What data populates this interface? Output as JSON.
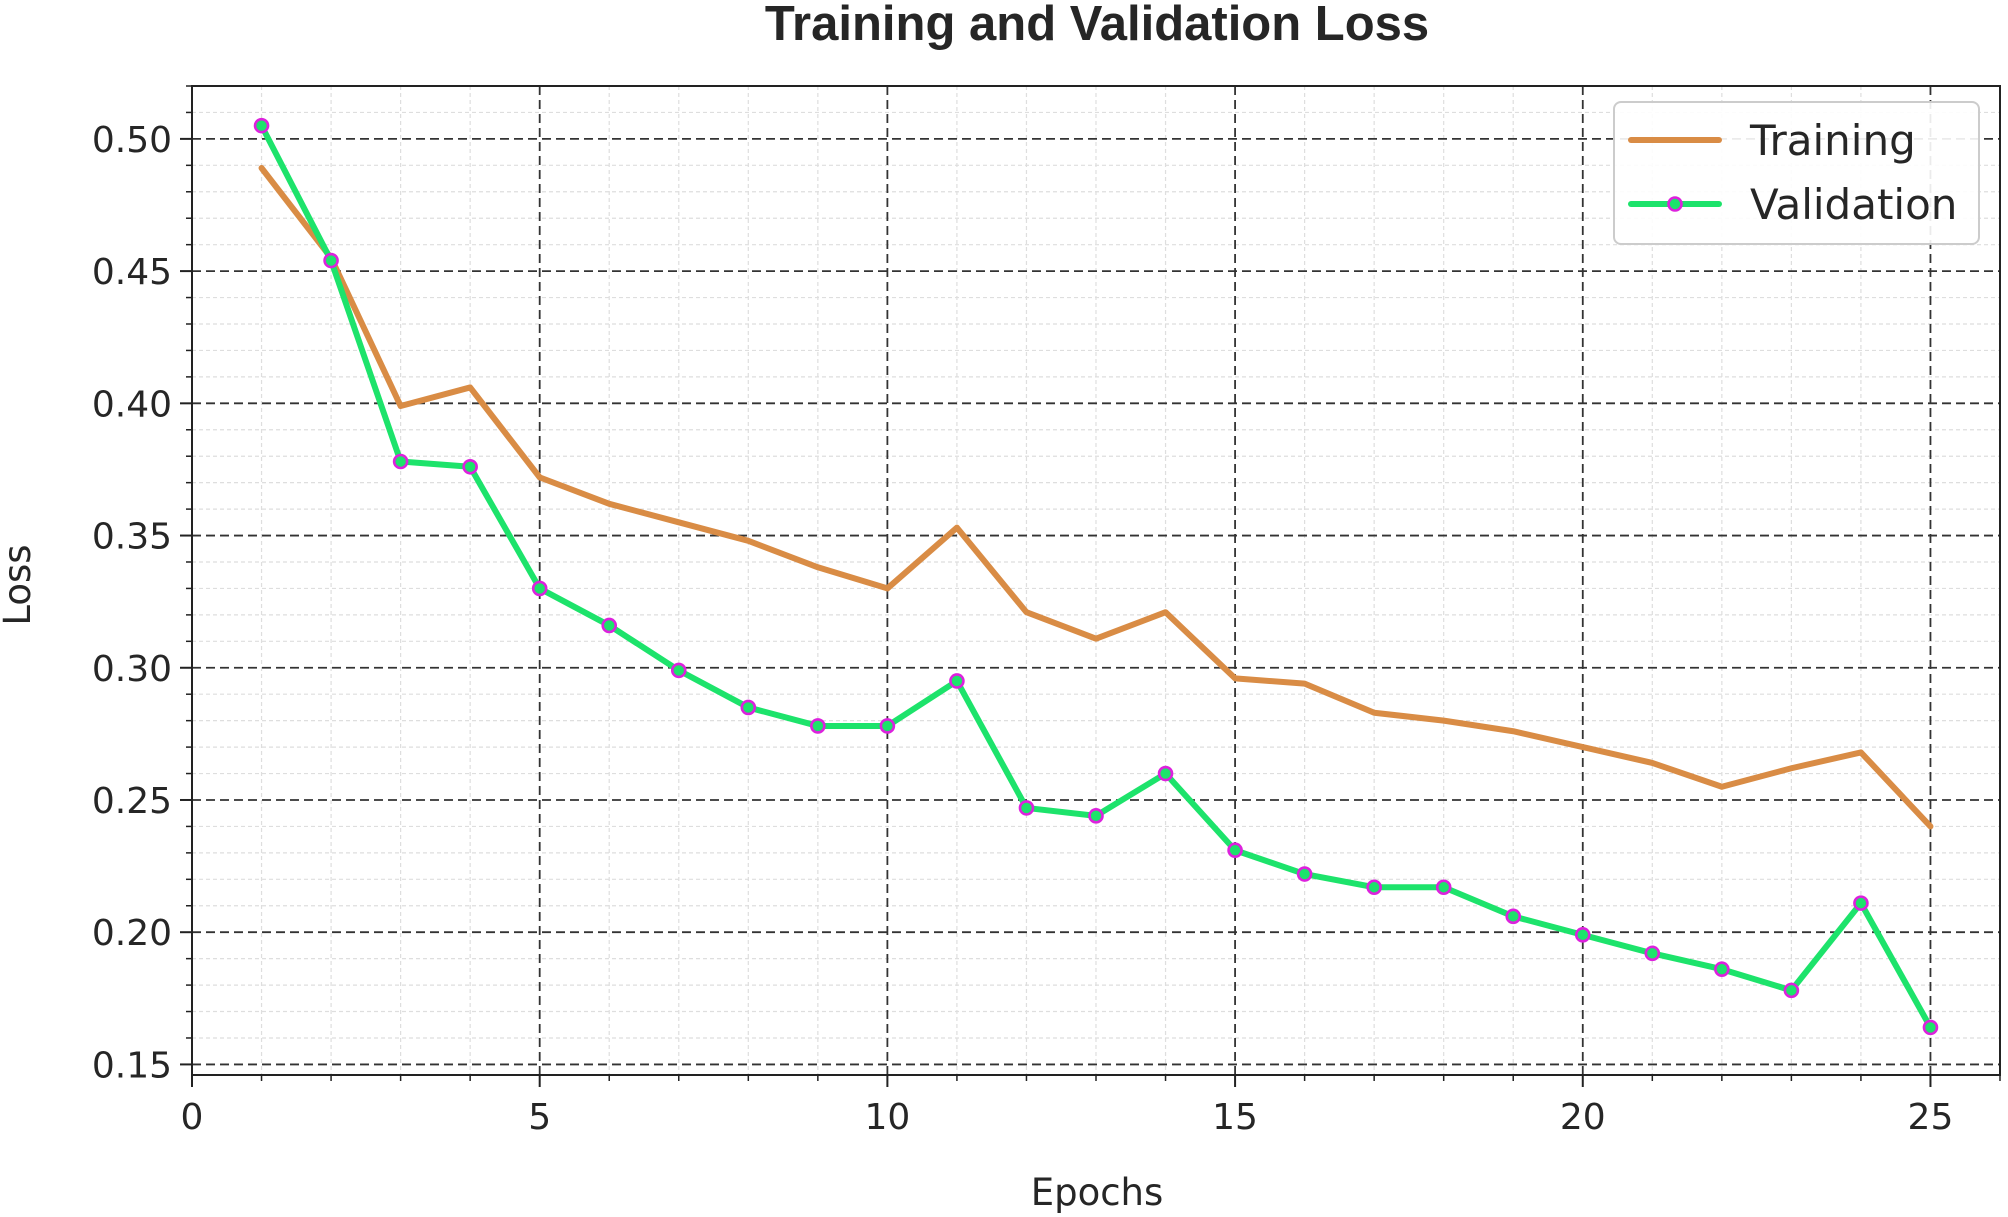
{
  "chart_data": {
    "type": "line",
    "title": "Training and Validation Loss",
    "xlabel": "Epochs",
    "ylabel": "Loss",
    "xlim": [
      0,
      26
    ],
    "ylim": [
      0.146,
      0.52
    ],
    "x_ticks": [
      0,
      5,
      10,
      15,
      20,
      25
    ],
    "y_ticks": [
      0.15,
      0.2,
      0.25,
      0.3,
      0.35,
      0.4,
      0.45,
      0.5
    ],
    "x_tick_labels": [
      "0",
      "5",
      "10",
      "15",
      "20",
      "25"
    ],
    "y_tick_labels": [
      "0.15",
      "0.20",
      "0.25",
      "0.30",
      "0.35",
      "0.40",
      "0.45",
      "0.50"
    ],
    "grid": true,
    "legend_position": "top-right",
    "x": [
      1,
      2,
      3,
      4,
      5,
      6,
      7,
      8,
      9,
      10,
      11,
      12,
      13,
      14,
      15,
      16,
      17,
      18,
      19,
      20,
      21,
      22,
      23,
      24,
      25
    ],
    "series": [
      {
        "name": "Training",
        "color": "#d98c45",
        "marker": "none",
        "values": [
          0.489,
          0.455,
          0.399,
          0.406,
          0.372,
          0.362,
          0.355,
          0.348,
          0.338,
          0.33,
          0.353,
          0.321,
          0.311,
          0.321,
          0.296,
          0.294,
          0.283,
          0.28,
          0.276,
          0.27,
          0.264,
          0.255,
          0.262,
          0.268,
          0.24
        ]
      },
      {
        "name": "Validation",
        "color": "#1de36b",
        "marker": "circle",
        "marker_edge_color": "#dd22dd",
        "values": [
          0.505,
          0.454,
          0.378,
          0.376,
          0.33,
          0.316,
          0.299,
          0.285,
          0.278,
          0.278,
          0.295,
          0.247,
          0.244,
          0.26,
          0.231,
          0.222,
          0.217,
          0.217,
          0.206,
          0.199,
          0.192,
          0.186,
          0.178,
          0.211,
          0.164
        ]
      }
    ]
  }
}
